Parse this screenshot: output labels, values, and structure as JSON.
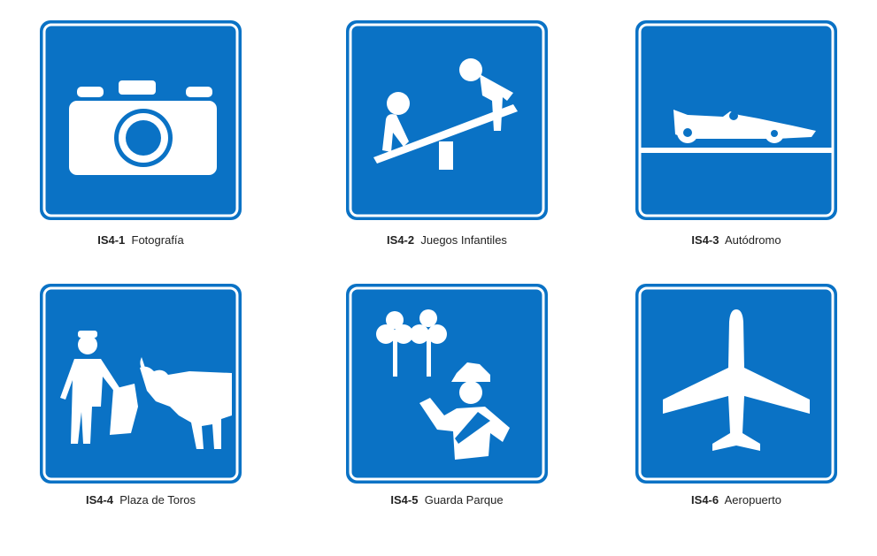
{
  "signs": [
    {
      "code": "IS4-1",
      "name": "Fotografía",
      "icon": "camera-icon"
    },
    {
      "code": "IS4-2",
      "name": "Juegos Infantiles",
      "icon": "seesaw-icon"
    },
    {
      "code": "IS4-3",
      "name": "Autódromo",
      "icon": "race-car-icon"
    },
    {
      "code": "IS4-4",
      "name": "Plaza de Toros",
      "icon": "bullfighter-icon"
    },
    {
      "code": "IS4-5",
      "name": "Guarda Parque",
      "icon": "park-ranger-icon"
    },
    {
      "code": "IS4-6",
      "name": "Aeropuerto",
      "icon": "airplane-icon"
    }
  ],
  "colors": {
    "sign_blue": "#0a72c5",
    "sign_white": "#ffffff",
    "text": "#222222"
  }
}
